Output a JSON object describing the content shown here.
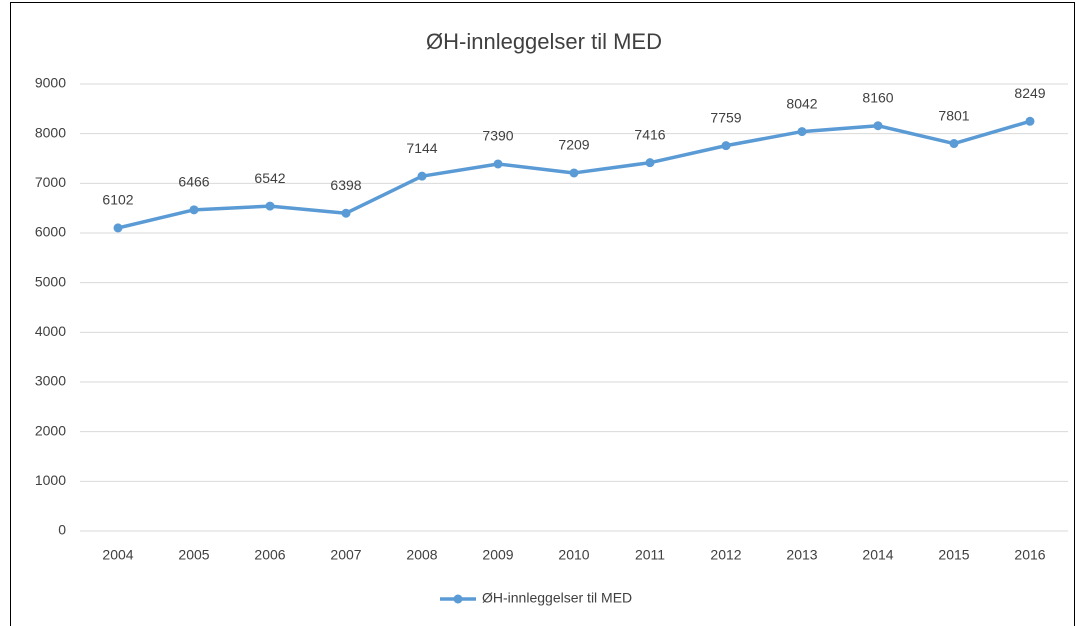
{
  "chart_data": {
    "type": "line",
    "title": "ØH-innleggelser til MED",
    "categories": [
      "2004",
      "2005",
      "2006",
      "2007",
      "2008",
      "2009",
      "2010",
      "2011",
      "2012",
      "2013",
      "2014",
      "2015",
      "2016"
    ],
    "series": [
      {
        "name": "ØH-innleggelser til MED",
        "color": "#5b9bd5",
        "values": [
          6102,
          6466,
          6542,
          6398,
          7144,
          7390,
          7209,
          7416,
          7759,
          8042,
          8160,
          7801,
          8249
        ]
      }
    ],
    "ylim": [
      0,
      9000
    ],
    "yticks": [
      0,
      1000,
      2000,
      3000,
      4000,
      5000,
      6000,
      7000,
      8000,
      9000
    ],
    "grid": true,
    "legend": "bottom"
  }
}
